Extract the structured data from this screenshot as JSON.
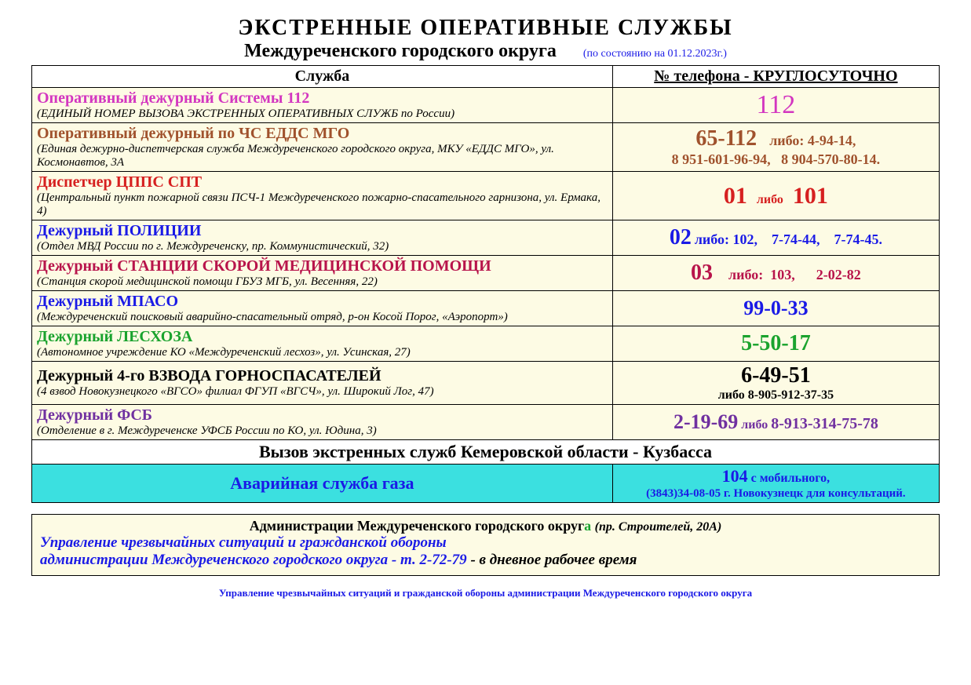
{
  "colors": {
    "cream": "#fdfbe4",
    "cyan": "#3be0e0",
    "blue_text": "#1a1ae6",
    "magenta": "#d336c0",
    "brown": "#a0522d",
    "red": "#d62020",
    "crimson": "#b8144b",
    "green": "#1aa32e",
    "purple": "#7030a0"
  },
  "header": {
    "title": "ЭКСТРЕННЫЕ  ОПЕРАТИВНЫЕ  СЛУЖБЫ",
    "subtitle": "Междуреченского  городского  округа",
    "date_note": "(по состоянию на 01.12.2023г.)"
  },
  "table": {
    "col_service": "Служба",
    "col_phone": "№ телефона - КРУГЛОСУТОЧНО"
  },
  "rows": [
    {
      "title": "Оперативный дежурный Системы 112",
      "title_color": "#d336c0",
      "title_size": 20,
      "desc": "(ЕДИНЫЙ НОМЕР ВЫЗОВА ЭКСТРЕННЫХ ОПЕРАТИВНЫХ СЛУЖБ по России)",
      "phone_html": "<span style='color:#d336c0;font-size:34px'>112</span>",
      "bg": "#fdfbe4"
    },
    {
      "title": "Оперативный дежурный по ЧС  ЕДДС МГО",
      "title_color": "#a0522d",
      "title_size": 20,
      "desc": "(Единая дежурно-диспетчерская служба Междуреченского городского округа, МКУ «ЕДДС МГО»,   ул. Космонавтов, 3А",
      "phone_html": "<span style='color:#a0522d;font-size:28px;font-weight:bold'>65-112</span> &nbsp;&nbsp;&nbsp;<span style='color:#a0522d;font-size:18px;font-weight:bold'>либо: 4-94-14,</span><br><span style='color:#a0522d;font-size:18px;font-weight:bold'>8  951-601-96-94,&nbsp;&nbsp; 8  904-570-80-14.</span>",
      "bg": "#fdfbe4"
    },
    {
      "title": "Диспетчер ЦППС СПТ",
      "title_color": "#d62020",
      "title_size": 20,
      "desc": "(Центральный  пункт  пожарной  связи  ПСЧ-1  Междуреченского  пожарно-спасательного гарнизона,  ул. Ермака, 4)",
      "phone_html": "<span style='color:#d62020;font-size:30px;font-weight:bold'>01</span>&nbsp;&nbsp;&nbsp;<span style='color:#d62020;font-size:16px;font-weight:bold'>либо</span>&nbsp;&nbsp;&nbsp;<span style='color:#d62020;font-size:30px;font-weight:bold'>101</span>",
      "bg": "#fdfbe4"
    },
    {
      "title": "Дежурный ПОЛИЦИИ",
      "title_color": "#1a1ae6",
      "title_size": 20,
      "desc": "(Отдел МВД России по г. Междуреченску,   пр. Коммунистический, 32)",
      "phone_html": "<span style='color:#1a1ae6;font-size:28px;font-weight:bold'>02</span> <span style='color:#1a1ae6;font-size:18px;font-weight:bold'>либо: 102,&nbsp;&nbsp;&nbsp; 7-74-44,&nbsp;&nbsp;&nbsp; 7-74-45.</span>",
      "bg": "#fdfbe4"
    },
    {
      "title": "Дежурный СТАНЦИИ СКОРОЙ МЕДИЦИНСКОЙ ПОМОЩИ",
      "title_color": "#b8144b",
      "title_size": 20,
      "desc": "(Станция скорой медицинской помощи ГБУЗ МГБ, ул. Весенняя, 22)",
      "phone_html": "<span style='color:#b8144b;font-size:28px;font-weight:bold'>03</span>&nbsp;&nbsp;&nbsp;&nbsp;&nbsp;<span style='color:#b8144b;font-size:18px;font-weight:bold'>либо:&nbsp;&nbsp;103,&nbsp;&nbsp;&nbsp;&nbsp;&nbsp;&nbsp;2-02-82</span>",
      "bg": "#fdfbe4"
    },
    {
      "title": "Дежурный МПАСО",
      "title_color": "#1a1ae6",
      "title_size": 20,
      "desc": "(Междуреченский поисковый аварийно-спасательный отряд, р-он Косой  Порог,  «Аэропорт»)",
      "phone_html": "<span style='color:#1a1ae6;font-size:26px;font-weight:bold'>99-0-33</span>",
      "bg": "#fdfbe4"
    },
    {
      "title": "Дежурный ЛЕСХОЗА",
      "title_color": "#1aa32e",
      "title_size": 20,
      "desc": "(Автономное учреждение КО «Междуреченский лесхоз», ул. Усинская, 27)",
      "phone_html": "<span style='color:#1aa32e;font-size:28px;font-weight:bold'>5-50-17</span>",
      "bg": "#fdfbe4"
    },
    {
      "title": "Дежурный 4-го ВЗВОДА  ГОРНОСПАСАТЕЛЕЙ",
      "title_color": "#000000",
      "title_size": 20,
      "desc": "(4 взвод Новокузнецкого «ВГСО» филиал ФГУП «ВГСЧ», ул. Широкий Лог, 47)",
      "phone_html": "<span style='color:#000;font-size:28px;font-weight:bold'>6-49-51</span><br><span style='color:#000;font-size:16px;font-weight:bold'>либо  8-905-912-37-35</span>",
      "bg": "#fdfbe4"
    },
    {
      "title": "Дежурный ФСБ",
      "title_color": "#7030a0",
      "title_size": 20,
      "desc": "(Отделение в г. Междуреченске УФСБ России  по КО, ул. Юдина, 3)",
      "phone_html": "<span style='color:#7030a0;font-size:26px;font-weight:bold'>2-19-69</span> <span style='color:#7030a0;font-size:16px;font-weight:bold'>либо</span> <span style='color:#7030a0;font-size:20px;font-weight:bold'>8-913-314-75-78</span>",
      "bg": "#fdfbe4"
    }
  ],
  "region_header": "Вызов экстренных служб  Кемеровской области - Кузбасса",
  "gas_row": {
    "title": "Аварийная   служба   газа",
    "title_color": "#1a1ae6",
    "title_size": 22,
    "phone_html": "<span style='color:#1a1ae6;font-size:22px;font-weight:bold'>104</span> <span style='color:#1a1ae6;font-size:16px;font-weight:bold'>с мобильного,</span><br><span style='color:#1a1ae6;font-size:15px;font-weight:bold'>(3843)34-08-05 г. Новокузнецк для консультаций.</span>",
    "bg": "#3be0e0"
  },
  "footer": {
    "title_pre": "Администрации Междуреченского городского округ",
    "title_a": "а",
    "addr": "(пр. Строителей, 20А)",
    "line1": "Управление чрезвычайных ситуаций и гражданской обороны",
    "line2_pre": "администрации Междуреченского городского округа     -     т.  ",
    "line2_phone": "2-72-79",
    "line2_post": " - в дневное рабочее время"
  },
  "credit": "Управление чрезвычайных ситуаций и гражданской обороны администрации Междуреченского  городского округа"
}
